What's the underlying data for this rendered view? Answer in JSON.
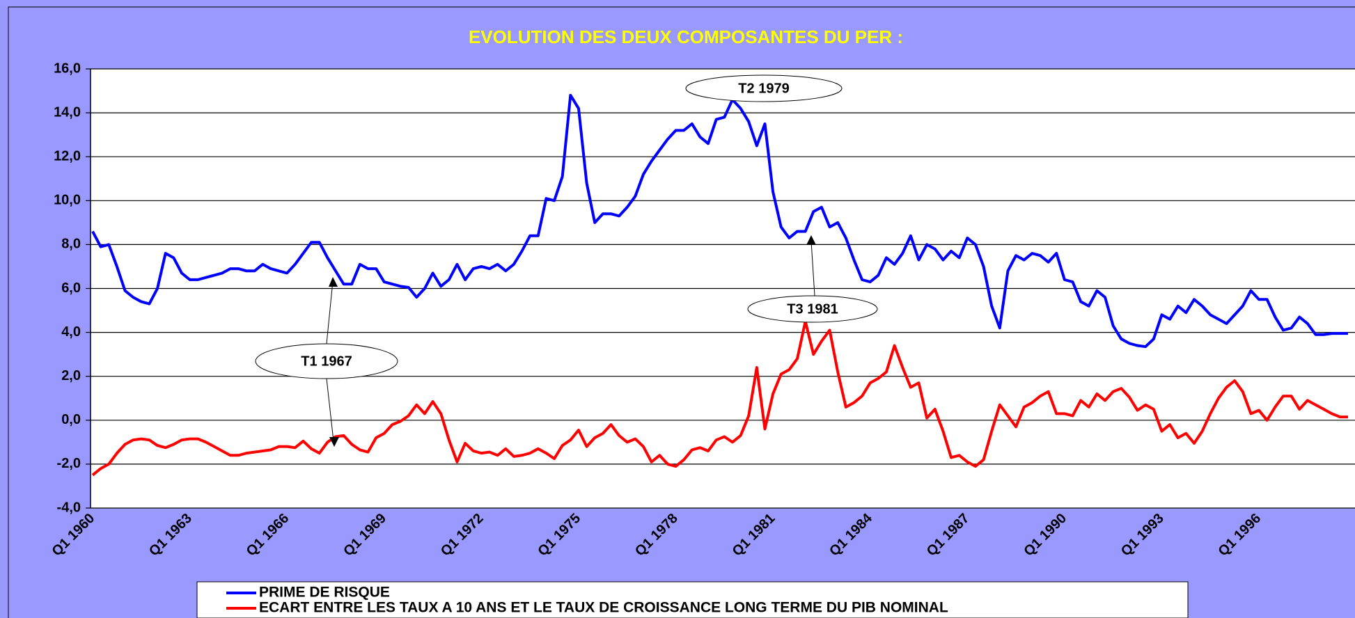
{
  "chart_data": {
    "type": "line",
    "title": "EVOLUTION DES DEUX COMPOSANTES DU PER :",
    "categories": [
      "Q1 1960",
      null,
      null,
      null,
      null,
      null,
      null,
      null,
      null,
      null,
      null,
      null,
      "Q1 1963",
      null,
      null,
      null,
      null,
      null,
      null,
      null,
      null,
      null,
      null,
      null,
      "Q1 1966",
      null,
      null,
      null,
      null,
      null,
      null,
      null,
      null,
      null,
      null,
      null,
      "Q1 1969",
      null,
      null,
      null,
      null,
      null,
      null,
      null,
      null,
      null,
      null,
      null,
      "Q1 1972",
      null,
      null,
      null,
      null,
      null,
      null,
      null,
      null,
      null,
      null,
      null,
      "Q1 1975",
      null,
      null,
      null,
      null,
      null,
      null,
      null,
      null,
      null,
      null,
      null,
      "Q1 1978",
      null,
      null,
      null,
      null,
      null,
      null,
      null,
      null,
      null,
      null,
      null,
      "Q1 1981",
      null,
      null,
      null,
      null,
      null,
      null,
      null,
      null,
      null,
      null,
      null,
      "Q1 1984",
      null,
      null,
      null,
      null,
      null,
      null,
      null,
      null,
      null,
      null,
      null,
      "Q1 1987",
      null,
      null,
      null,
      null,
      null,
      null,
      null,
      null,
      null,
      null,
      null,
      "Q1 1990",
      null,
      null,
      null,
      null,
      null,
      null,
      null,
      null,
      null,
      null,
      null,
      "Q1 1993",
      null,
      null,
      null,
      null,
      null,
      null,
      null,
      null,
      null,
      null,
      null,
      "Q1 1996",
      null,
      null,
      null,
      null,
      null,
      null,
      null,
      null,
      null,
      null,
      null
    ],
    "series": [
      {
        "name": "PRIME DE RISQUE",
        "color": "#0000ff",
        "values": [
          8.6,
          7.9,
          8.0,
          7.0,
          5.9,
          5.6,
          5.4,
          5.3,
          6.0,
          7.6,
          7.4,
          6.7,
          6.4,
          6.4,
          6.5,
          6.6,
          6.7,
          6.9,
          6.9,
          6.8,
          6.8,
          7.1,
          6.9,
          6.8,
          6.7,
          7.1,
          7.6,
          8.1,
          8.1,
          7.4,
          6.8,
          6.2,
          6.2,
          7.1,
          6.9,
          6.9,
          6.3,
          6.2,
          6.1,
          6.05,
          5.6,
          6.0,
          6.7,
          6.1,
          6.4,
          7.1,
          6.4,
          6.9,
          7.0,
          6.9,
          7.1,
          6.8,
          7.1,
          7.7,
          8.4,
          8.4,
          10.1,
          10.0,
          11.1,
          14.8,
          14.2,
          10.8,
          9.0,
          9.4,
          9.4,
          9.3,
          9.7,
          10.2,
          11.2,
          11.8,
          12.3,
          12.8,
          13.2,
          13.2,
          13.5,
          12.9,
          12.6,
          13.7,
          13.8,
          14.6,
          14.2,
          13.6,
          12.5,
          13.5,
          10.4,
          8.8,
          8.3,
          8.6,
          8.6,
          9.5,
          9.7,
          8.8,
          9.0,
          8.3,
          7.3,
          6.4,
          6.3,
          6.6,
          7.4,
          7.1,
          7.6,
          8.4,
          7.3,
          8.0,
          7.8,
          7.3,
          7.7,
          7.4,
          8.3,
          8.0,
          7.0,
          5.2,
          4.2,
          6.8,
          7.5,
          7.3,
          7.6,
          7.5,
          7.2,
          7.6,
          6.4,
          6.3,
          5.4,
          5.2,
          5.9,
          5.6,
          4.3,
          3.7,
          3.5,
          3.4,
          3.35,
          3.7,
          4.8,
          4.6,
          5.2,
          4.9,
          5.5,
          5.2,
          4.8,
          4.6,
          4.4,
          4.8,
          5.2,
          5.9,
          5.5,
          5.5,
          4.7,
          4.1,
          4.2,
          4.7,
          4.4,
          3.9,
          3.9,
          3.95,
          3.95,
          3.95
        ]
      },
      {
        "name": "ECART ENTRE LES TAUX A 10 ANS ET LE TAUX DE CROISSANCE LONG TERME DU PIB NOMINAL",
        "color": "#ff0000",
        "values": [
          -2.5,
          -2.2,
          -2.0,
          -1.5,
          -1.1,
          -0.9,
          -0.85,
          -0.9,
          -1.15,
          -1.25,
          -1.1,
          -0.9,
          -0.85,
          -0.85,
          -1.0,
          -1.2,
          -1.4,
          -1.6,
          -1.6,
          -1.5,
          -1.45,
          -1.4,
          -1.35,
          -1.2,
          -1.2,
          -1.25,
          -0.95,
          -1.3,
          -1.5,
          -1.0,
          -0.75,
          -0.7,
          -1.1,
          -1.35,
          -1.45,
          -0.8,
          -0.6,
          -0.2,
          -0.05,
          0.2,
          0.7,
          0.3,
          0.85,
          0.3,
          -0.9,
          -1.9,
          -1.05,
          -1.4,
          -1.5,
          -1.45,
          -1.6,
          -1.3,
          -1.65,
          -1.6,
          -1.5,
          -1.3,
          -1.5,
          -1.75,
          -1.15,
          -0.9,
          -0.45,
          -1.2,
          -0.8,
          -0.6,
          -0.2,
          -0.7,
          -1.0,
          -0.85,
          -1.2,
          -1.9,
          -1.6,
          -2.0,
          -2.1,
          -1.8,
          -1.35,
          -1.25,
          -1.4,
          -0.9,
          -0.75,
          -1.0,
          -0.7,
          0.2,
          2.4,
          -0.4,
          1.2,
          2.1,
          2.3,
          2.8,
          4.5,
          3.0,
          3.6,
          4.1,
          2.2,
          0.6,
          0.8,
          1.1,
          1.7,
          1.9,
          2.2,
          3.4,
          2.4,
          1.5,
          1.7,
          0.1,
          0.5,
          -0.5,
          -1.7,
          -1.6,
          -1.9,
          -2.1,
          -1.8,
          -0.5,
          0.7,
          0.2,
          -0.3,
          0.6,
          0.8,
          1.1,
          1.3,
          0.3,
          0.3,
          0.2,
          0.9,
          0.6,
          1.2,
          0.9,
          1.3,
          1.45,
          1.05,
          0.45,
          0.7,
          0.5,
          -0.5,
          -0.2,
          -0.8,
          -0.6,
          -1.05,
          -0.5,
          0.3,
          1.0,
          1.5,
          1.8,
          1.3,
          0.3,
          0.45,
          0.0,
          0.6,
          1.1,
          1.1,
          0.5,
          0.9,
          0.7,
          0.5,
          0.3,
          0.15,
          0.15
        ]
      }
    ],
    "ylim": [
      -4,
      16
    ],
    "yticks": [
      {
        "value": -4,
        "label": "-4,0"
      },
      {
        "value": -2,
        "label": "-2,0"
      },
      {
        "value": 0,
        "label": "0,0"
      },
      {
        "value": 2,
        "label": "2,0"
      },
      {
        "value": 4,
        "label": "4,0"
      },
      {
        "value": 6,
        "label": "6,0"
      },
      {
        "value": 8,
        "label": "8,0"
      },
      {
        "value": 10,
        "label": "10,0"
      },
      {
        "value": 12,
        "label": "12,0"
      },
      {
        "value": 14,
        "label": "14,0"
      },
      {
        "value": 16,
        "label": "16,0"
      }
    ],
    "grid": true,
    "legend": "bottom",
    "annotations": [
      "T1 1967",
      "T2 1979",
      "T3 1981"
    ]
  }
}
